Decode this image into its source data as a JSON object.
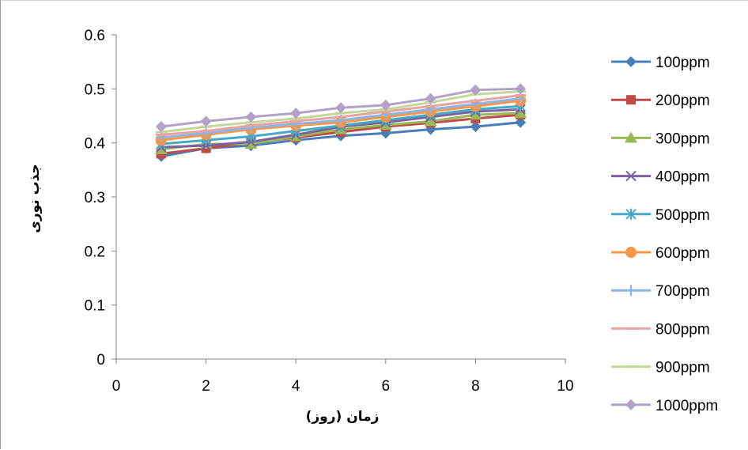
{
  "chart_data": {
    "type": "line",
    "xlabel": "زمان (روز)",
    "ylabel": "جذب نوری",
    "xlim": [
      0,
      10
    ],
    "ylim": [
      0,
      0.6
    ],
    "x_ticks": [
      "0",
      "2",
      "4",
      "6",
      "8",
      "10"
    ],
    "y_ticks": [
      "0",
      "0.1",
      "0.2",
      "0.3",
      "0.4",
      "0.5",
      "0.6"
    ],
    "grid": false,
    "legend_position": "right",
    "x": [
      1,
      2,
      3,
      4,
      5,
      6,
      7,
      8,
      9
    ],
    "series": [
      {
        "name": "100ppm",
        "color": "#4a7ebb",
        "marker": "diamond",
        "values": [
          0.375,
          0.39,
          0.395,
          0.405,
          0.413,
          0.418,
          0.425,
          0.43,
          0.438
        ]
      },
      {
        "name": "200ppm",
        "color": "#be4b48",
        "marker": "square",
        "values": [
          0.38,
          0.39,
          0.4,
          0.41,
          0.42,
          0.43,
          0.437,
          0.445,
          0.452
        ]
      },
      {
        "name": "300ppm",
        "color": "#98b954",
        "marker": "triangle",
        "values": [
          0.388,
          0.398,
          0.398,
          0.412,
          0.425,
          0.433,
          0.44,
          0.452,
          0.455
        ]
      },
      {
        "name": "400ppm",
        "color": "#7d60a0",
        "marker": "x",
        "values": [
          0.392,
          0.395,
          0.402,
          0.415,
          0.43,
          0.438,
          0.448,
          0.458,
          0.462
        ]
      },
      {
        "name": "500ppm",
        "color": "#46aac5",
        "marker": "star",
        "values": [
          0.398,
          0.405,
          0.412,
          0.422,
          0.432,
          0.442,
          0.452,
          0.462,
          0.468
        ]
      },
      {
        "name": "600ppm",
        "color": "#f79646",
        "marker": "circle",
        "values": [
          0.405,
          0.415,
          0.425,
          0.432,
          0.438,
          0.448,
          0.458,
          0.468,
          0.478
        ]
      },
      {
        "name": "700ppm",
        "color": "#8eb4e3",
        "marker": "plus",
        "values": [
          0.41,
          0.418,
          0.428,
          0.435,
          0.442,
          0.452,
          0.462,
          0.472,
          0.482
        ]
      },
      {
        "name": "800ppm",
        "color": "#e6a3a2",
        "marker": "dash",
        "values": [
          0.415,
          0.422,
          0.432,
          0.44,
          0.448,
          0.458,
          0.468,
          0.478,
          0.488
        ]
      },
      {
        "name": "900ppm",
        "color": "#c3d69b",
        "marker": "dash",
        "values": [
          0.42,
          0.43,
          0.438,
          0.445,
          0.455,
          0.462,
          0.475,
          0.49,
          0.495
        ]
      },
      {
        "name": "1000ppm",
        "color": "#b3a2c7",
        "marker": "diamond",
        "values": [
          0.43,
          0.44,
          0.448,
          0.455,
          0.465,
          0.47,
          0.482,
          0.498,
          0.5
        ]
      }
    ]
  }
}
